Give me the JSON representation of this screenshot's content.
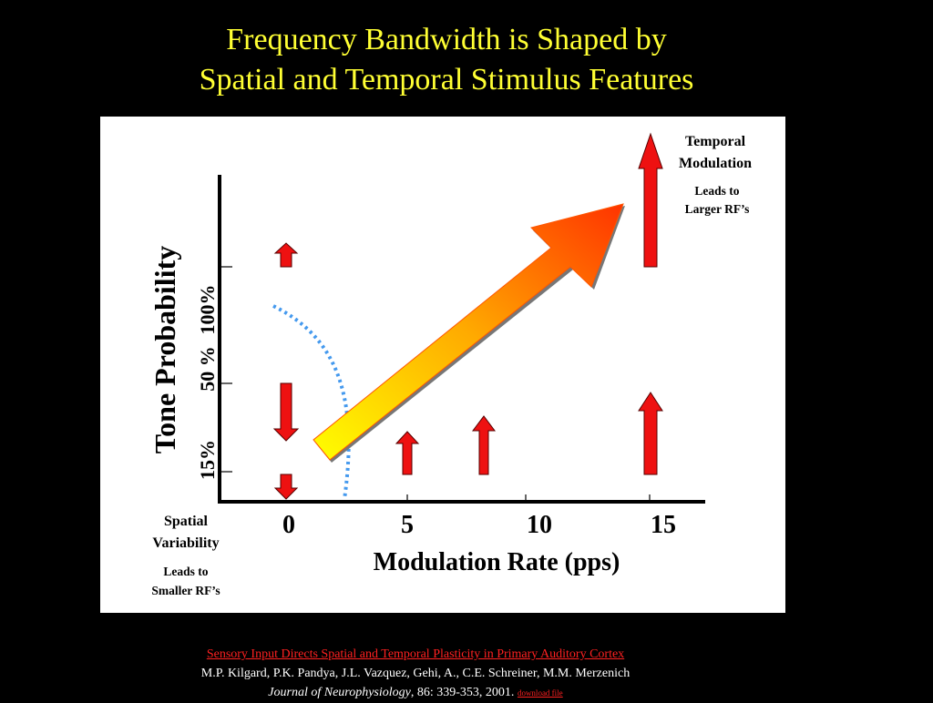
{
  "slide": {
    "title_line1": "Frequency Bandwidth is Shaped by",
    "title_line2": "Spatial and Temporal Stimulus Features"
  },
  "diagram": {
    "y_axis_label": "Tone Probability",
    "y_ticks": [
      "15%",
      "50 %",
      "100%"
    ],
    "x_ticks": [
      "0",
      "5",
      "10",
      "15"
    ],
    "x_axis_label": "Modulation Rate (pps)",
    "temporal_note": {
      "line1": "Temporal",
      "line2": "Modulation",
      "sub1": "Leads to",
      "sub2": "Larger RF’s"
    },
    "spatial_note": {
      "line1": "Spatial",
      "line2": "Variability",
      "sub1": "Leads to",
      "sub2": "Smaller RF’s"
    },
    "colors": {
      "arrow_red": "#ee1111",
      "gradient_start": "#ffff00",
      "gradient_end": "#ff3300",
      "dotted_curve": "#4499ee"
    }
  },
  "footer": {
    "paper_title": "Sensory Input Directs Spatial and Temporal Plasticity in Primary Auditory Cortex",
    "authors": "M.P. Kilgard, P.K. Pandya, J.L. Vazquez, Gehi, A., C.E. Schreiner, M.M. Merzenich",
    "journal": "Journal of Neurophysiology",
    "citation": ", 86: 339-353, 2001.",
    "download": "download file"
  }
}
